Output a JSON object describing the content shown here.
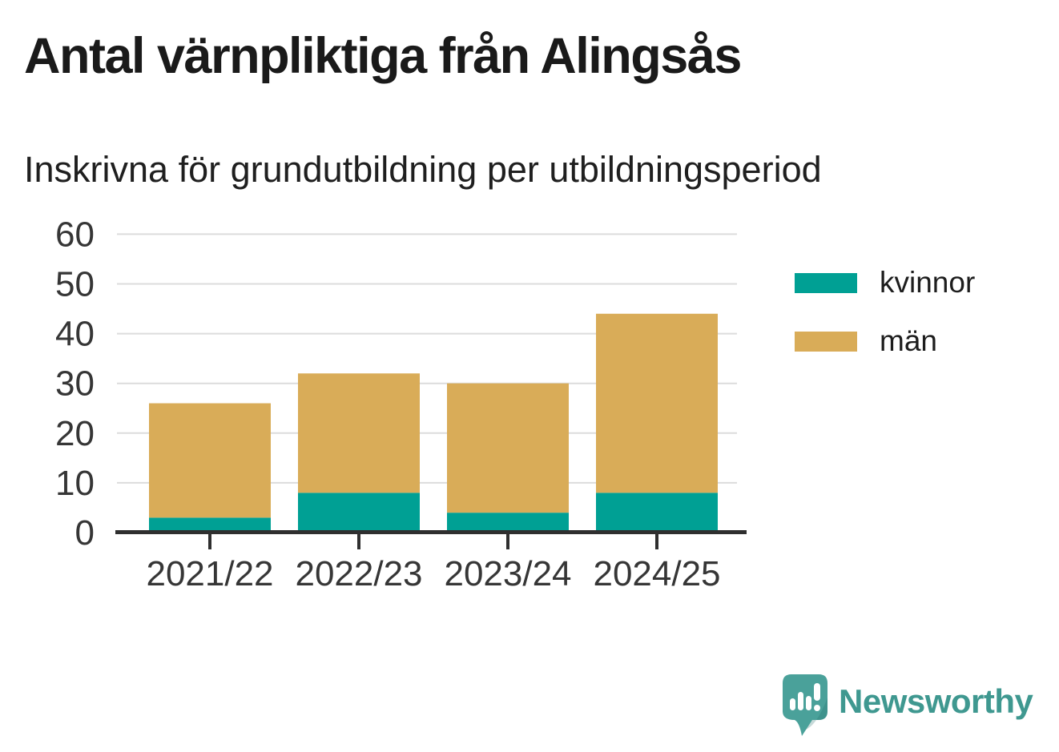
{
  "header": {
    "title": "Antal värnpliktiga från Alingsås",
    "subtitle": "Inskrivna för grundutbildning per utbildningsperiod"
  },
  "chart_data": {
    "type": "bar",
    "stacked": true,
    "title": "Antal värnpliktiga från Alingsås",
    "subtitle": "Inskrivna för grundutbildning per utbildningsperiod",
    "xlabel": "",
    "ylabel": "",
    "categories": [
      "2021/22",
      "2022/23",
      "2023/24",
      "2024/25"
    ],
    "series": [
      {
        "name": "kvinnor",
        "color": "#00a094",
        "values": [
          3,
          8,
          4,
          8
        ]
      },
      {
        "name": "män",
        "color": "#d9ac58",
        "values": [
          23,
          24,
          26,
          36
        ]
      }
    ],
    "totals": [
      26,
      32,
      30,
      44
    ],
    "ylim": [
      0,
      60
    ],
    "yticks": [
      0,
      10,
      20,
      30,
      40,
      50,
      60
    ],
    "grid": true,
    "legend_position": "right"
  },
  "brand": {
    "name": "Newsworthy",
    "color": "#3f9890",
    "icon_color": "#4aa19a"
  },
  "colors": {
    "background": "#ffffff",
    "title_text": "#1a1a1a",
    "axis_text": "#363636",
    "gridline": "#dcdcdc",
    "axis_line": "#2f2f2f"
  }
}
